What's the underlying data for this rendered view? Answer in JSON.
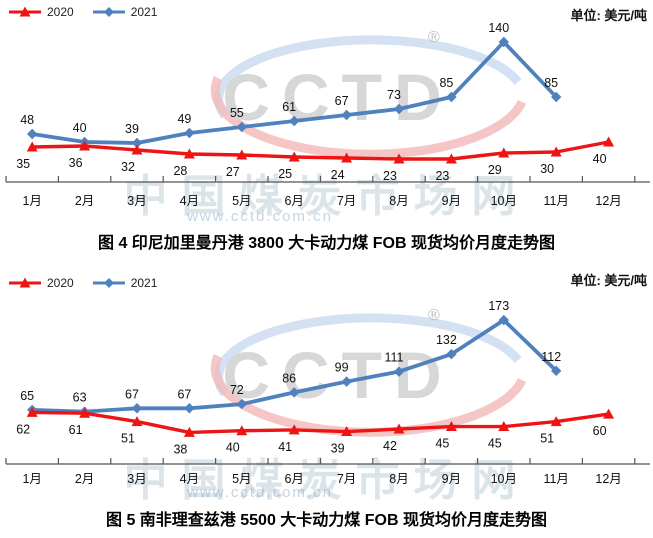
{
  "unit_label": "单位: 美元/吨",
  "watermark": {
    "logo_text": "CCTD",
    "registered_mark": "®",
    "site_name": "中国煤炭市场网",
    "site_url": "www.cctd.com.cn"
  },
  "colors": {
    "series_2020": "#ee1414",
    "series_2021": "#4f81bd",
    "axis": "#555555",
    "label_text": "#111111"
  },
  "chart_data": [
    {
      "type": "line",
      "title": "图 4  印尼加里曼丹港 3800 大卡动力煤 FOB 现货均价月度走势图",
      "unit": "美元/吨",
      "legend_position": "top-left",
      "grid": false,
      "y_axis_visible": false,
      "ylim": [
        0,
        150
      ],
      "categories": [
        "1月",
        "2月",
        "3月",
        "4月",
        "5月",
        "6月",
        "7月",
        "8月",
        "9月",
        "10月",
        "11月",
        "12月"
      ],
      "series": [
        {
          "name": "2020",
          "color": "#ee1414",
          "marker": "triangle",
          "values": [
            35,
            36,
            32,
            28,
            27,
            25,
            24,
            23,
            23,
            29,
            30,
            40
          ]
        },
        {
          "name": "2021",
          "color": "#4f81bd",
          "marker": "diamond",
          "values": [
            48,
            40,
            39,
            49,
            55,
            61,
            67,
            73,
            85,
            140,
            85
          ]
        }
      ]
    },
    {
      "type": "line",
      "title": "图 5  南非理查兹港 5500 大卡动力煤 FOB 现货均价月度走势图",
      "unit": "美元/吨",
      "legend_position": "top-left",
      "grid": false,
      "y_axis_visible": false,
      "ylim": [
        0,
        185
      ],
      "categories": [
        "1月",
        "2月",
        "3月",
        "4月",
        "5月",
        "6月",
        "7月",
        "8月",
        "9月",
        "10月",
        "11月",
        "12月"
      ],
      "series": [
        {
          "name": "2020",
          "color": "#ee1414",
          "marker": "triangle",
          "values": [
            62,
            61,
            51,
            38,
            40,
            41,
            39,
            42,
            45,
            45,
            51,
            60
          ]
        },
        {
          "name": "2021",
          "color": "#4f81bd",
          "marker": "diamond",
          "values": [
            65,
            63,
            67,
            67,
            72,
            86,
            99,
            111,
            132,
            173,
            112
          ]
        }
      ]
    }
  ]
}
